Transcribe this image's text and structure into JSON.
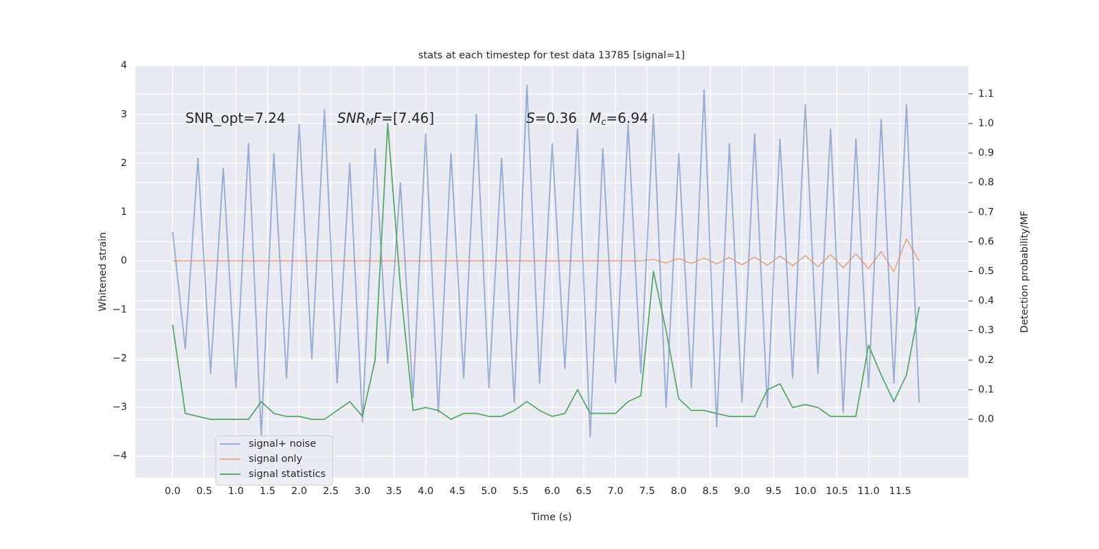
{
  "chart_data": {
    "type": "line",
    "title": "stats at each timestep for test data 13785 [signal=1]",
    "xlabel": "Time (s)",
    "ylabel": "Whitened strain",
    "y2label": "Detection probability/MF",
    "annotations": [
      [
        {
          "text": "SNR_opt=7.24",
          "style": "normal"
        }
      ],
      [
        {
          "text": "SNR",
          "style": "italic"
        },
        {
          "text": "M",
          "style": "sub"
        },
        {
          "text": "F",
          "style": "italic"
        },
        {
          "text": "=[7.46]",
          "style": "normal"
        }
      ],
      [
        {
          "text": "S",
          "style": "italic"
        },
        {
          "text": "=0.36",
          "style": "normal"
        }
      ],
      [
        {
          "text": "M",
          "style": "italic"
        },
        {
          "text": "c",
          "style": "sub"
        },
        {
          "text": "=6.94",
          "style": "normal"
        }
      ]
    ],
    "x": [
      0,
      0.2,
      0.4,
      0.6,
      0.8,
      1.0,
      1.2,
      1.4,
      1.6,
      1.8,
      2.0,
      2.2,
      2.4,
      2.6,
      2.8,
      3.0,
      3.2,
      3.4,
      3.6,
      3.8,
      4.0,
      4.2,
      4.4,
      4.6,
      4.8,
      5.0,
      5.2,
      5.4,
      5.6,
      5.8,
      6.0,
      6.2,
      6.4,
      6.6,
      6.8,
      7.0,
      7.2,
      7.4,
      7.6,
      7.8,
      8.0,
      8.2,
      8.4,
      8.6,
      8.8,
      9.0,
      9.2,
      9.4,
      9.6,
      9.8,
      10.0,
      10.2,
      10.4,
      10.6,
      10.8,
      11.0,
      11.2,
      11.4,
      11.6,
      11.8
    ],
    "series": [
      {
        "name": "signal+ noise",
        "color": "#4c72b0",
        "opacity": 0.5,
        "axis": "y",
        "values": [
          0.6,
          -1.8,
          2.1,
          -2.3,
          1.9,
          -2.6,
          2.4,
          -3.6,
          2.2,
          -2.4,
          2.8,
          -2.0,
          3.1,
          -2.5,
          2.0,
          -3.3,
          2.3,
          -2.1,
          1.6,
          -2.8,
          2.6,
          -3.1,
          2.2,
          -2.4,
          3.0,
          -2.6,
          2.1,
          -2.9,
          3.6,
          -2.5,
          2.4,
          -2.2,
          2.7,
          -3.6,
          2.3,
          -2.5,
          2.8,
          -2.3,
          3.0,
          -3.0,
          2.2,
          -2.6,
          3.5,
          -3.4,
          2.4,
          -2.9,
          2.6,
          -3.0,
          2.5,
          -2.4,
          3.2,
          -2.3,
          2.7,
          -3.1,
          2.5,
          -2.6,
          2.9,
          -2.5,
          3.2,
          -2.9
        ]
      },
      {
        "name": "signal only",
        "color": "#dd8452",
        "opacity": 0.6,
        "axis": "y",
        "values": [
          0,
          0,
          0,
          0,
          0,
          0,
          0,
          0,
          0,
          0,
          0,
          0,
          0,
          0,
          0,
          0,
          0,
          0,
          0,
          0,
          0,
          0,
          0,
          0,
          0,
          0,
          0,
          0,
          0,
          0,
          0,
          0,
          0,
          0,
          0,
          0,
          0,
          0,
          0.03,
          -0.04,
          0.05,
          -0.05,
          0.06,
          -0.06,
          0.07,
          -0.08,
          0.08,
          -0.09,
          0.1,
          -0.1,
          0.11,
          -0.12,
          0.13,
          -0.14,
          0.15,
          -0.16,
          0.19,
          -0.22,
          0.45,
          0
        ]
      },
      {
        "name": "signal statistics",
        "color": "#55a868",
        "opacity": 1,
        "axis": "y2",
        "values": [
          0.32,
          0.02,
          0.01,
          0.0,
          0.0,
          0.0,
          0.0,
          0.06,
          0.02,
          0.01,
          0.01,
          0.0,
          0.0,
          0.03,
          0.06,
          0.01,
          0.2,
          1.0,
          0.45,
          0.03,
          0.04,
          0.03,
          0.0,
          0.02,
          0.02,
          0.01,
          0.01,
          0.03,
          0.06,
          0.03,
          0.01,
          0.02,
          0.1,
          0.02,
          0.02,
          0.02,
          0.06,
          0.08,
          0.5,
          0.3,
          0.07,
          0.03,
          0.03,
          0.02,
          0.01,
          0.01,
          0.01,
          0.1,
          0.12,
          0.04,
          0.05,
          0.04,
          0.01,
          0.01,
          0.01,
          0.25,
          0.15,
          0.06,
          0.15,
          0.38
        ]
      }
    ],
    "xlim": [
      -0.59,
      12.58
    ],
    "ylim": [
      -4.44,
      4.01
    ],
    "y2lim": [
      -0.197,
      1.197
    ],
    "xticks": [
      {
        "value": 0,
        "label": "0.0"
      },
      0.5,
      {
        "value": 1,
        "label": "1.0"
      },
      1.5,
      {
        "value": 2,
        "label": "2.0"
      },
      2.5,
      {
        "value": 3,
        "label": "3.0"
      },
      3.5,
      {
        "value": 4,
        "label": "4.0"
      },
      4.5,
      {
        "value": 5,
        "label": "5.0"
      },
      5.5,
      {
        "value": 6,
        "label": "6.0"
      },
      6.5,
      {
        "value": 7,
        "label": "7.0"
      },
      7.5,
      {
        "value": 8,
        "label": "8.0"
      },
      8.5,
      {
        "value": 9,
        "label": "9.0"
      },
      9.5,
      {
        "value": 10,
        "label": "10.0"
      },
      10.5,
      {
        "value": 11,
        "label": "11.0"
      },
      11.5
    ],
    "yticks": [
      {
        "value": -4,
        "label": "−4"
      },
      {
        "value": -3,
        "label": "−3"
      },
      {
        "value": -2,
        "label": "−2"
      },
      {
        "value": -1,
        "label": "−1"
      },
      0,
      1,
      2,
      3,
      4
    ],
    "y2ticks": [
      {
        "value": 0,
        "label": "0.0"
      },
      0.1,
      0.2,
      0.3,
      0.4,
      0.5,
      0.6,
      0.7,
      0.8,
      0.9,
      {
        "value": 1,
        "label": "1.0"
      },
      1.1
    ],
    "grid": true,
    "legend": "lower left"
  }
}
